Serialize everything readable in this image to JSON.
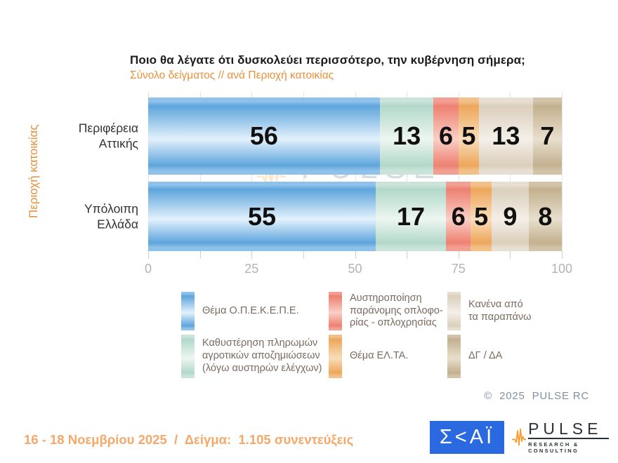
{
  "header": {
    "title": "Ποιο θα λέγατε ότι δυσκολεύει περισσότερο, την κυβέρνηση σήμερα;",
    "subtitle": "Σύνολο δείγματος // ανά Περιοχή κατοικίας"
  },
  "y_axis_title": "Περιοχή κατοικίας",
  "chart_data": {
    "type": "bar",
    "orientation": "horizontal",
    "stacked": true,
    "xlim": [
      0,
      100
    ],
    "x_ticks": [
      0,
      25,
      50,
      75,
      100
    ],
    "grid_step": 12.5,
    "grid": true,
    "categories": [
      "Περιφέρεια\nΑττικής",
      "Υπόλοιπη\nΕλλάδα"
    ],
    "series": [
      {
        "name": "Θέμα Ο.Π.Ε.Κ.Ε.Π.Ε.",
        "values": [
          56,
          55
        ],
        "fill": {
          "dark": "#5ea5dc",
          "light": "#e3f1fc",
          "mid": "#8fc2ea"
        }
      },
      {
        "name": "Καθυστέρηση πληρωμών αγροτικών αποζημιώσεων (λόγω αυστηρών ελέγχων)",
        "values": [
          13,
          17
        ],
        "fill": {
          "dark": "#b2d8ca",
          "light": "#edf6f1",
          "mid": "#cbe4da"
        }
      },
      {
        "name": "Αυστηροποίηση παράνομης οπλοφορίας - οπλοχρησίας",
        "values": [
          6,
          6
        ],
        "fill": {
          "dark": "#ed8171",
          "light": "#facfc6",
          "mid": "#f2a094"
        }
      },
      {
        "name": "Θέμα ΕΛ.ΤΑ.",
        "values": [
          5,
          5
        ],
        "fill": {
          "dark": "#eda75b",
          "light": "#f9ddba",
          "mid": "#f2c189"
        }
      },
      {
        "name": "Κανένα από τα παραπάνω",
        "values": [
          13,
          9
        ],
        "fill": {
          "dark": "#dbcfbd",
          "light": "#f4efe7",
          "mid": "#e7dfd1"
        }
      },
      {
        "name": "ΔΓ / ΔΑ",
        "values": [
          7,
          8
        ],
        "fill": {
          "dark": "#c3b08f",
          "light": "#e8dfcd",
          "mid": "#d2c3a9"
        }
      }
    ]
  },
  "legend": {
    "items": [
      {
        "series_index": 0,
        "column": 0,
        "row": 0,
        "label": "Θέμα Ο.Π.Ε.Κ.Ε.Π.Ε."
      },
      {
        "series_index": 1,
        "column": 0,
        "row": 1,
        "label": "Καθυστέρηση πληρωμών\nαγροτικών αποζημιώσεων\n(λόγω αυστηρών ελέγχων)"
      },
      {
        "series_index": 2,
        "column": 1,
        "row": 0,
        "label": "Αυστηροποίηση\nπαράνομης οπλοφο-\nρίας - οπλοχρησίας"
      },
      {
        "series_index": 3,
        "column": 1,
        "row": 1,
        "label": "Θέμα ΕΛ.ΤΑ."
      },
      {
        "series_index": 4,
        "column": 2,
        "row": 0,
        "label": "Κανένα από\nτα παραπάνω"
      },
      {
        "series_index": 5,
        "column": 2,
        "row": 1,
        "label": "ΔΓ / ΔΑ"
      }
    ]
  },
  "watermark": {
    "title": "PULSE",
    "subtitle": "RESEARCH & CONSULTING"
  },
  "footer": {
    "copyright": "©  2025  PULSE RC",
    "fieldwork": "16 - 18 Νοεμβρίου 2025  /  Δείγμα:  1.105 συνεντεύξεις"
  },
  "logos": {
    "skai_text": "Σ<ΑΪ",
    "pulse_name": "PULSE",
    "pulse_tagline": "RESEARCH & CONSULTING"
  },
  "colors": {
    "accent_orange": "#e8913c",
    "footer_orange": "#f5a869",
    "skai_blue": "#2b69e0",
    "pulse_dark": "#2b3138",
    "pulse_orange": "#f59d2f"
  }
}
